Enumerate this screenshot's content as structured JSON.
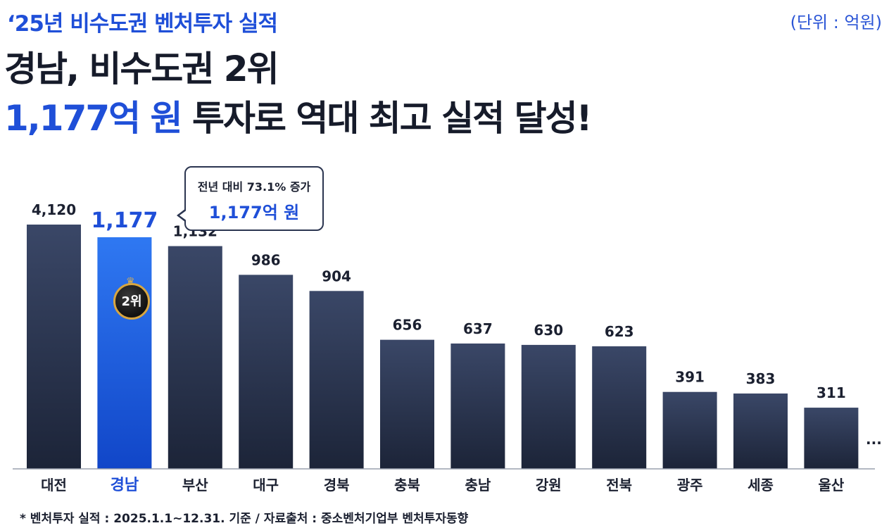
{
  "header": {
    "subtitle": "‘25년 비수도권 벤처투자 실적",
    "unit": "(단위 : 억원)",
    "headline": "경남, 비수도권 2위",
    "headline2_highlight": "1,177억 원",
    "headline2_rest": " 투자로 역대 최고 실적 달성!"
  },
  "callout": {
    "line1": "전년 대비 73.1% 증가",
    "line2": "1,177억 원"
  },
  "badge": {
    "text": "2위",
    "crown": "♛"
  },
  "ellipsis": "...",
  "footnote": "* 벤처투자 실적 : 2025.1.1~12.31. 기준 / 자료출처 : 중소벤처기업부 벤처투자동향",
  "colors": {
    "bar": "#2b3652",
    "bar_highlight": "#1f5fe0",
    "label": "#1b2030",
    "label_highlight": "#1f4fd8"
  },
  "chart_data": {
    "type": "bar",
    "categories": [
      "대전",
      "경남",
      "부산",
      "대구",
      "경북",
      "충북",
      "충남",
      "강원",
      "전북",
      "광주",
      "세종",
      "울산"
    ],
    "values": [
      4120,
      1177,
      1132,
      986,
      904,
      656,
      637,
      630,
      623,
      391,
      383,
      311
    ],
    "value_labels": [
      "4,120",
      "1,177",
      "1,132",
      "986",
      "904",
      "656",
      "637",
      "630",
      "623",
      "391",
      "383",
      "311"
    ],
    "highlight_index": 1,
    "ylim": [
      0,
      4120
    ],
    "axis_break": true,
    "grid": false,
    "legend": "none"
  }
}
